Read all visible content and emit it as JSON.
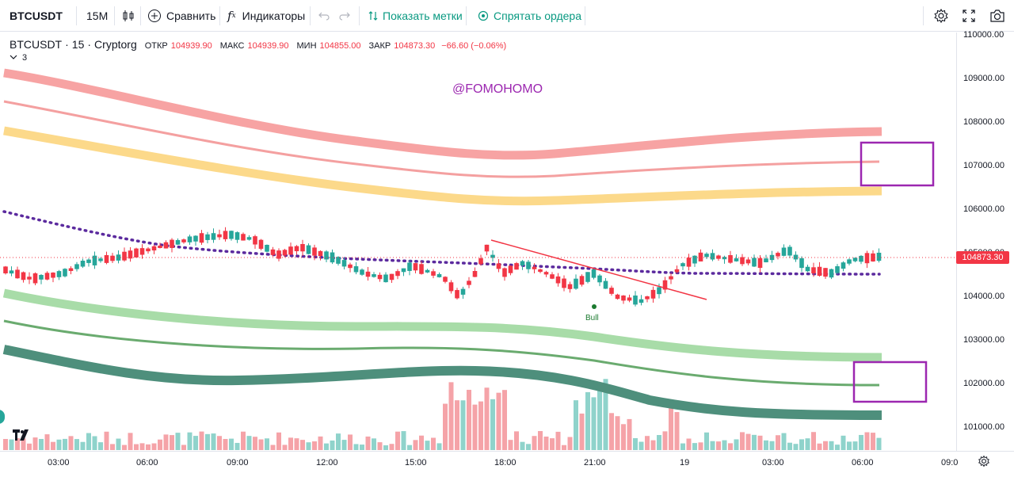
{
  "toolbar": {
    "symbol": "BTCUSDT",
    "interval": "15M",
    "compare_label": "Сравнить",
    "indicators_label": "Индикаторы",
    "show_marks_label": "Показать метки",
    "hide_orders_label": "Спрятать ордера"
  },
  "legend": {
    "symbol": "BTCUSDT",
    "interval": "15",
    "exchange": "Cryptorg",
    "open_label": "ОТКР",
    "open": "104939.90",
    "high_label": "МАКС",
    "high": "104939.90",
    "low_label": "МИН",
    "low": "104855.00",
    "close_label": "ЗАКР",
    "close": "104873.30",
    "change": "−66.60 (−0.06%)",
    "indicator_count": "3"
  },
  "watermark": "@FOMOHOMO",
  "bull_label": "Bull",
  "last_price": "104873.30",
  "price_axis": [
    "110000.00",
    "109000.00",
    "108000.00",
    "107000.00",
    "106000.00",
    "105000.00",
    "104000.00",
    "103000.00",
    "102000.00",
    "101000.00"
  ],
  "time_axis": [
    "03:00",
    "06:00",
    "09:00",
    "12:00",
    "15:00",
    "18:00",
    "21:00",
    "19",
    "03:00",
    "06:00",
    "09:0"
  ],
  "colors": {
    "up": "#26a69a",
    "down": "#f23645",
    "red_band": "#f7a3a3",
    "yellow_band": "#fcd98a",
    "green_band": "#a8dca8",
    "dark_green_band": "#4e8f7c",
    "purple": "#9c27b0"
  }
}
